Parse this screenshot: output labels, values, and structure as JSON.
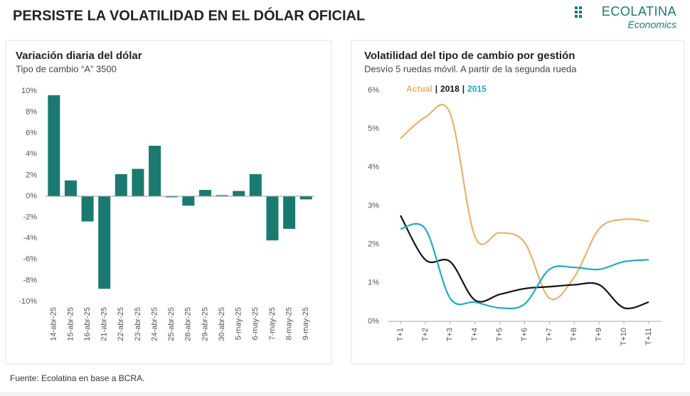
{
  "header": {
    "title": "PERSISTE LA VOLATILIDAD EN EL DÓLAR OFICIAL",
    "brand": "ECOLATINA",
    "brand_sub": "Economics"
  },
  "chart_data": [
    {
      "type": "bar",
      "title": "Variación diaria del dólar",
      "subtitle": "Tipo de cambio “A” 3500",
      "categories": [
        "14-abr-25",
        "15-abr-25",
        "16-abr-25",
        "21-abr-25",
        "22-abr-25",
        "23-abr-25",
        "24-abr-25",
        "25-abr-25",
        "28-abr-25",
        "29-abr-25",
        "30-abr-25",
        "5-may-25",
        "6-may-25",
        "7-may-25",
        "8-may-25",
        "9-may-25"
      ],
      "values": [
        9.6,
        1.5,
        -2.4,
        -8.8,
        2.1,
        2.6,
        4.8,
        -0.1,
        -0.9,
        0.6,
        0.1,
        0.5,
        2.1,
        -4.2,
        -3.1,
        -0.3
      ],
      "color": "#1b7a70",
      "ylim": [
        -10,
        10
      ],
      "yticks": [
        {
          "value": 10,
          "label": "10%"
        },
        {
          "value": 8,
          "label": "8%"
        },
        {
          "value": 6,
          "label": "6%"
        },
        {
          "value": 4,
          "label": "4%"
        },
        {
          "value": 2,
          "label": "2%"
        },
        {
          "value": 0,
          "label": "0%"
        },
        {
          "value": -2,
          "label": "-2%"
        },
        {
          "value": -4,
          "label": "-4%"
        },
        {
          "value": -6,
          "label": "-6%"
        },
        {
          "value": -8,
          "label": "-8%"
        },
        {
          "value": -10,
          "label": "-10%"
        }
      ],
      "grid": false
    },
    {
      "type": "line",
      "title": "Volatilidad del tipo de cambio por gestión",
      "subtitle": "Desvío 5 ruedas móvil. A partir de la segunda rueda",
      "categories": [
        "T+1",
        "T+2",
        "T+3",
        "T+4",
        "T+5",
        "T+6",
        "T+7",
        "T+8",
        "T+9",
        "T+10",
        "T+11"
      ],
      "series": [
        {
          "name": "Actual",
          "color": "#e9b26e",
          "values": [
            4.75,
            5.3,
            5.4,
            2.2,
            2.3,
            2.05,
            0.6,
            1.15,
            2.4,
            2.65,
            2.6
          ]
        },
        {
          "name": "2018",
          "color": "#111111",
          "values": [
            2.75,
            1.6,
            1.55,
            0.55,
            0.7,
            0.85,
            0.9,
            0.95,
            0.95,
            0.35,
            0.5
          ]
        },
        {
          "name": "2015",
          "color": "#1fa9c4",
          "values": [
            2.4,
            2.4,
            0.6,
            0.5,
            0.35,
            0.45,
            1.35,
            1.4,
            1.35,
            1.55,
            1.6
          ]
        }
      ],
      "legend_separator": "|",
      "ylim": [
        0,
        6
      ],
      "yticks": [
        {
          "value": 6,
          "label": "6%"
        },
        {
          "value": 5,
          "label": "5%"
        },
        {
          "value": 4,
          "label": "4%"
        },
        {
          "value": 3,
          "label": "3%"
        },
        {
          "value": 2,
          "label": "2%"
        },
        {
          "value": 1,
          "label": "1%"
        },
        {
          "value": 0,
          "label": "0%"
        }
      ],
      "grid": false
    }
  ],
  "footer": {
    "source": "Fuente: Ecolatina en base a BCRA."
  }
}
